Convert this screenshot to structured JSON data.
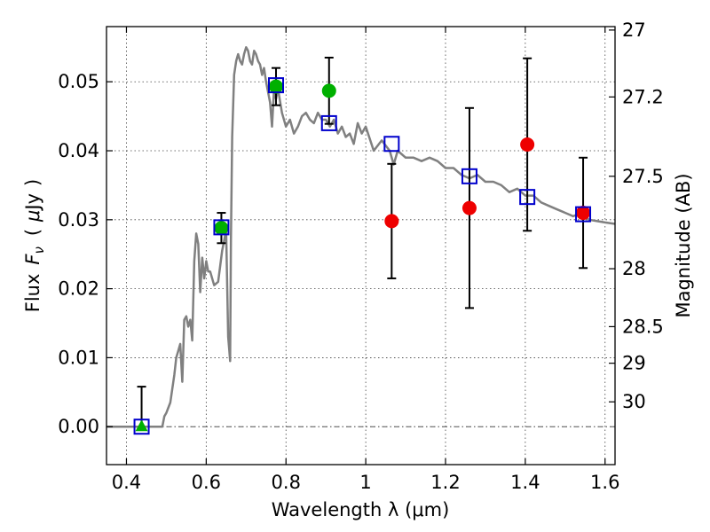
{
  "chart_data": {
    "type": "scatter",
    "xlabel": "Wavelength  λ (μm)",
    "ylabel": "Flux  F_ν  ( μJy )",
    "ylabel_parts": [
      "Flux",
      "F",
      "ν",
      "(",
      "μ",
      "Jy",
      ")"
    ],
    "y2label": "Magnitude (AB)",
    "xlim": [
      0.35,
      1.625
    ],
    "ylim": [
      -0.0055,
      0.058
    ],
    "grid": true,
    "legend": "none",
    "x_ticks": [
      0.4,
      0.6,
      0.8,
      1.0,
      1.2,
      1.4,
      1.6
    ],
    "x_tick_labels": [
      "0.4",
      "0.6",
      "0.8",
      "1",
      "1.2",
      "1.4",
      "1.6"
    ],
    "y_ticks": [
      0.0,
      0.01,
      0.02,
      0.03,
      0.04,
      0.05
    ],
    "y_tick_labels": [
      "0.00",
      "0.01",
      "0.02",
      "0.03",
      "0.04",
      "0.05"
    ],
    "mag_ticks": [
      {
        "label": "27",
        "flux": 0.0575
      },
      {
        "label": "27.2",
        "flux": 0.0478
      },
      {
        "label": "27.5",
        "flux": 0.0363
      },
      {
        "label": "28",
        "flux": 0.0229
      },
      {
        "label": "28.5",
        "flux": 0.0145
      },
      {
        "label": "29",
        "flux": 0.0092
      },
      {
        "label": "30",
        "flux": 0.0036
      }
    ],
    "colors": {
      "model": "#808080",
      "green": "#00b000",
      "red": "#ee0000",
      "square": "#0000cc",
      "errorbar": "#000000"
    },
    "series": [
      {
        "kind": "model_spectrum",
        "x": [
          0.35,
          0.4,
          0.45,
          0.49,
          0.495,
          0.5,
          0.51,
          0.52,
          0.525,
          0.53,
          0.535,
          0.54,
          0.545,
          0.55,
          0.555,
          0.56,
          0.565,
          0.57,
          0.575,
          0.58,
          0.585,
          0.59,
          0.595,
          0.6,
          0.605,
          0.61,
          0.62,
          0.63,
          0.64,
          0.645,
          0.65,
          0.655,
          0.658,
          0.66,
          0.662,
          0.665,
          0.67,
          0.675,
          0.68,
          0.685,
          0.69,
          0.695,
          0.7,
          0.705,
          0.71,
          0.715,
          0.72,
          0.725,
          0.73,
          0.735,
          0.74,
          0.745,
          0.75,
          0.76,
          0.765,
          0.77,
          0.775,
          0.78,
          0.79,
          0.8,
          0.81,
          0.82,
          0.83,
          0.84,
          0.85,
          0.86,
          0.87,
          0.88,
          0.89,
          0.9,
          0.91,
          0.92,
          0.93,
          0.94,
          0.95,
          0.96,
          0.97,
          0.98,
          0.99,
          1.0,
          1.02,
          1.04,
          1.06,
          1.07,
          1.08,
          1.1,
          1.12,
          1.14,
          1.16,
          1.18,
          1.2,
          1.22,
          1.24,
          1.26,
          1.28,
          1.3,
          1.32,
          1.34,
          1.36,
          1.38,
          1.4,
          1.42,
          1.44,
          1.46,
          1.48,
          1.5,
          1.52,
          1.54,
          1.56,
          1.58,
          1.6,
          1.625
        ],
        "y": [
          0.0,
          0.0,
          0.0,
          0.0,
          0.0015,
          0.002,
          0.0035,
          0.0075,
          0.01,
          0.011,
          0.012,
          0.0065,
          0.0155,
          0.016,
          0.0145,
          0.0155,
          0.0125,
          0.024,
          0.028,
          0.0265,
          0.0195,
          0.0245,
          0.0215,
          0.024,
          0.0225,
          0.0225,
          0.0205,
          0.021,
          0.0255,
          0.027,
          0.0285,
          0.013,
          0.011,
          0.0095,
          0.027,
          0.042,
          0.051,
          0.053,
          0.054,
          0.053,
          0.0525,
          0.054,
          0.055,
          0.0545,
          0.053,
          0.0525,
          0.0545,
          0.054,
          0.053,
          0.0525,
          0.051,
          0.052,
          0.05,
          0.047,
          0.0435,
          0.049,
          0.0475,
          0.049,
          0.0455,
          0.0435,
          0.0445,
          0.0425,
          0.0435,
          0.045,
          0.0455,
          0.0445,
          0.044,
          0.0455,
          0.0445,
          0.0445,
          0.0435,
          0.0445,
          0.0425,
          0.0435,
          0.042,
          0.0425,
          0.041,
          0.044,
          0.0425,
          0.0435,
          0.04,
          0.0415,
          0.04,
          0.038,
          0.04,
          0.039,
          0.039,
          0.0385,
          0.039,
          0.0385,
          0.0375,
          0.0375,
          0.0365,
          0.036,
          0.0365,
          0.0355,
          0.0355,
          0.035,
          0.034,
          0.0345,
          0.0335,
          0.0335,
          0.0325,
          0.032,
          0.0315,
          0.031,
          0.0305,
          0.031,
          0.03,
          0.0298,
          0.0296,
          0.0294
        ]
      },
      {
        "kind": "green_circles",
        "x": [
          0.638,
          0.775,
          0.908
        ],
        "y": [
          0.0288,
          0.0493,
          0.0487
        ],
        "yerr": [
          0.0022,
          0.0027,
          0.0048
        ]
      },
      {
        "kind": "green_triangle",
        "x": [
          0.438
        ],
        "y": [
          0.0
        ],
        "yerr_up": [
          0.0058
        ]
      },
      {
        "kind": "red_circles",
        "x": [
          1.065,
          1.26,
          1.405,
          1.545
        ],
        "y": [
          0.0298,
          0.0317,
          0.0409,
          0.031
        ],
        "yerr": [
          0.0083,
          0.0145,
          0.0125,
          0.008
        ]
      },
      {
        "kind": "blue_squares",
        "x": [
          0.438,
          0.638,
          0.775,
          0.908,
          1.065,
          1.26,
          1.405,
          1.545
        ],
        "y": [
          0.0,
          0.0289,
          0.0495,
          0.044,
          0.041,
          0.0363,
          0.0333,
          0.0308
        ]
      }
    ]
  }
}
